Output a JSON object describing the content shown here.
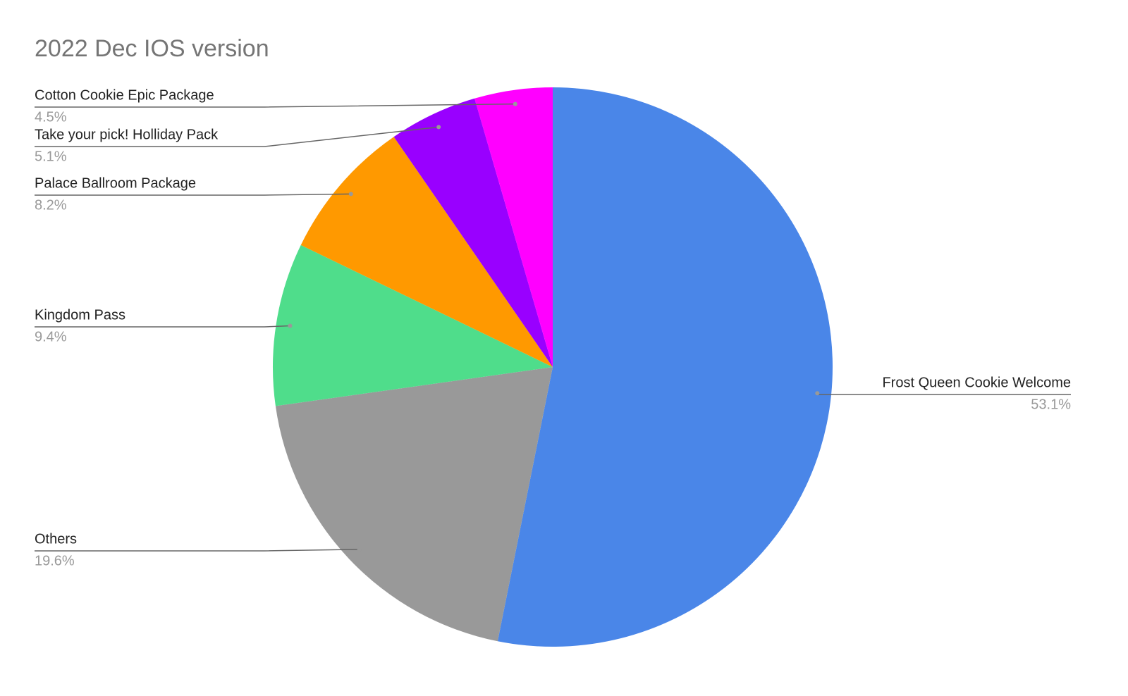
{
  "chart_data": {
    "type": "pie",
    "title": "2022 Dec IOS version",
    "labels": [
      "Frost Queen Cookie Welcome",
      "Others",
      "Kingdom Pass",
      "Palace Ballroom Package",
      "Take your pick! Holliday Pack",
      "Cotton Cookie Epic Package"
    ],
    "values": [
      53.1,
      19.6,
      9.4,
      8.2,
      5.1,
      4.5
    ],
    "value_labels": [
      "53.1%",
      "19.6%",
      "9.4%",
      "8.2%",
      "5.1%",
      "4.5%"
    ],
    "colors": [
      "#4a86e8",
      "#999999",
      "#4fdd8b",
      "#ff9900",
      "#9900ff",
      "#ff00ff"
    ]
  }
}
